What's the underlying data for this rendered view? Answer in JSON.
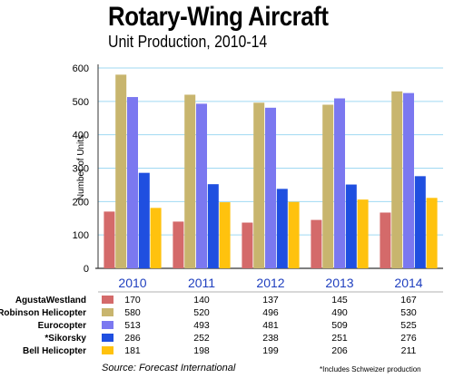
{
  "chart_data": {
    "type": "bar",
    "title": "Rotary-Wing Aircraft",
    "subtitle": "Unit Production, 2010-14",
    "ylabel": "Number of Units",
    "xlabel": "",
    "ylim": [
      0,
      600
    ],
    "yticks": [
      0,
      100,
      200,
      300,
      400,
      500,
      600
    ],
    "categories": [
      "2010",
      "2011",
      "2012",
      "2013",
      "2014"
    ],
    "grid": true,
    "legend": "table-below",
    "series": [
      {
        "name": "AgustaWestland",
        "color": "#d46a6a",
        "values": [
          170,
          140,
          137,
          145,
          167
        ]
      },
      {
        "name": "Robinson Helicopter",
        "color": "#c8b56e",
        "values": [
          580,
          520,
          496,
          490,
          530
        ]
      },
      {
        "name": "Eurocopter",
        "color": "#7b78f0",
        "values": [
          513,
          493,
          481,
          509,
          525
        ]
      },
      {
        "name": "*Sikorsky",
        "color": "#1f4fe0",
        "values": [
          286,
          252,
          238,
          251,
          276
        ]
      },
      {
        "name": "Bell Helicopter",
        "color": "#ffc20e",
        "values": [
          181,
          198,
          199,
          206,
          211
        ]
      }
    ],
    "source": "Source:  Forecast International",
    "note": "*Includes Schweizer production"
  }
}
